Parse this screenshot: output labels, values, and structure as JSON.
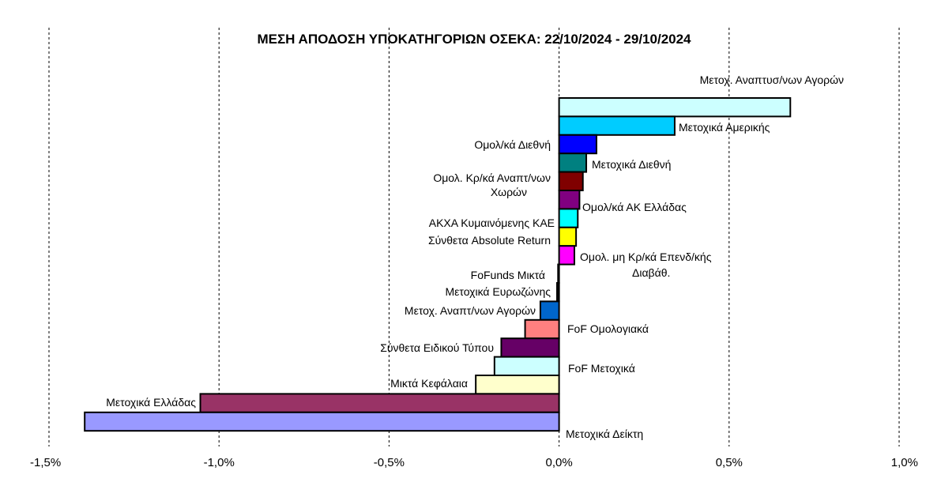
{
  "chart_data": {
    "type": "bar",
    "orientation": "horizontal",
    "title": "ΜΕΣΗ ΑΠΟΔΟΣΗ ΥΠΟΚΑΤΗΓΟΡΙΩΝ ΟΣΕΚΑ: 22/10/2024 - 29/10/2024",
    "xlim": [
      -1.5,
      1.0
    ],
    "x_ticks": [
      "-1,5%",
      "-1,0%",
      "-0,5%",
      "0,0%",
      "0,5%",
      "1,0%"
    ],
    "grid": "vertical dashed",
    "unit": "%",
    "bars": [
      {
        "label": "Μετοχ. Αναπτυσ/νων Αγορών",
        "value": 0.68,
        "color": "#CCFFFF"
      },
      {
        "label": "Μετοχικά Αμερικής",
        "value": 0.34,
        "color": "#00CCFF"
      },
      {
        "label": "Ομολ/κά Διεθνή",
        "value": 0.11,
        "color": "#0000FF"
      },
      {
        "label": "Μετοχικά Διεθνή",
        "value": 0.08,
        "color": "#008080"
      },
      {
        "label": "Ομολ. Κρ/κά Αναπτ/νων Χωρών",
        "value": 0.07,
        "color": "#800000"
      },
      {
        "label": "Ομολ/κά ΑΚ Ελλάδας",
        "value": 0.06,
        "color": "#800080"
      },
      {
        "label": "ΑΚΧΑ Κυμαινόμενης  ΚΑΕ",
        "value": 0.055,
        "color": "#00FFFF"
      },
      {
        "label": "Σύνθετα Absolute  Return",
        "value": 0.05,
        "color": "#FFFF00"
      },
      {
        "label": "Ομολ. μη Κρ/κά Επενδ/κής Διαβάθ.",
        "value": 0.045,
        "color": "#FF00FF"
      },
      {
        "label": "FoFunds Μικτά",
        "value": -0.003,
        "color": "#000000"
      },
      {
        "label": "Μετοχικά Ευρωζώνης",
        "value": -0.006,
        "color": "#000000"
      },
      {
        "label": "Μετοχ. Αναπτ/νων Αγορών",
        "value": -0.055,
        "color": "#0066CC"
      },
      {
        "label": "FoF Ομολογιακά",
        "value": -0.1,
        "color": "#FF8080"
      },
      {
        "label": "Σύνθετα Ειδικού Τύπου",
        "value": -0.17,
        "color": "#660066"
      },
      {
        "label": "FoF Μετοχικά",
        "value": -0.19,
        "color": "#CCFFFF"
      },
      {
        "label": "Μικτά  Κεφάλαια",
        "value": -0.245,
        "color": "#FFFFCC"
      },
      {
        "label": "Μετοχικά Ελλάδας",
        "value": -1.055,
        "color": "#993366"
      },
      {
        "label": "Μετοχικά Δείκτη",
        "value": -1.395,
        "color": "#9999FF"
      }
    ]
  }
}
